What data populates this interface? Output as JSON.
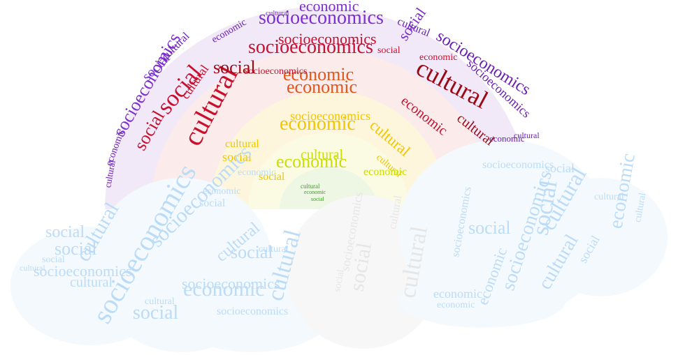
{
  "words": {
    "social": "social",
    "cultural": "cultural",
    "economic": "economic",
    "socioeconomics": "socioeconomics"
  },
  "colors": {
    "purple": "#6a1fb3",
    "violet": "#7b2fd0",
    "red": "#c8102e",
    "dark_red": "#9b0a14",
    "orange": "#e0551a",
    "yellow": "#f2c500",
    "lime": "#c8e000",
    "green": "#3a9d23",
    "cloud_blue": "#bcdcf5",
    "cloud_grey": "#e6e6e6",
    "arc_bg": "#efe6f7",
    "red_bg": "#fbe9ea"
  }
}
